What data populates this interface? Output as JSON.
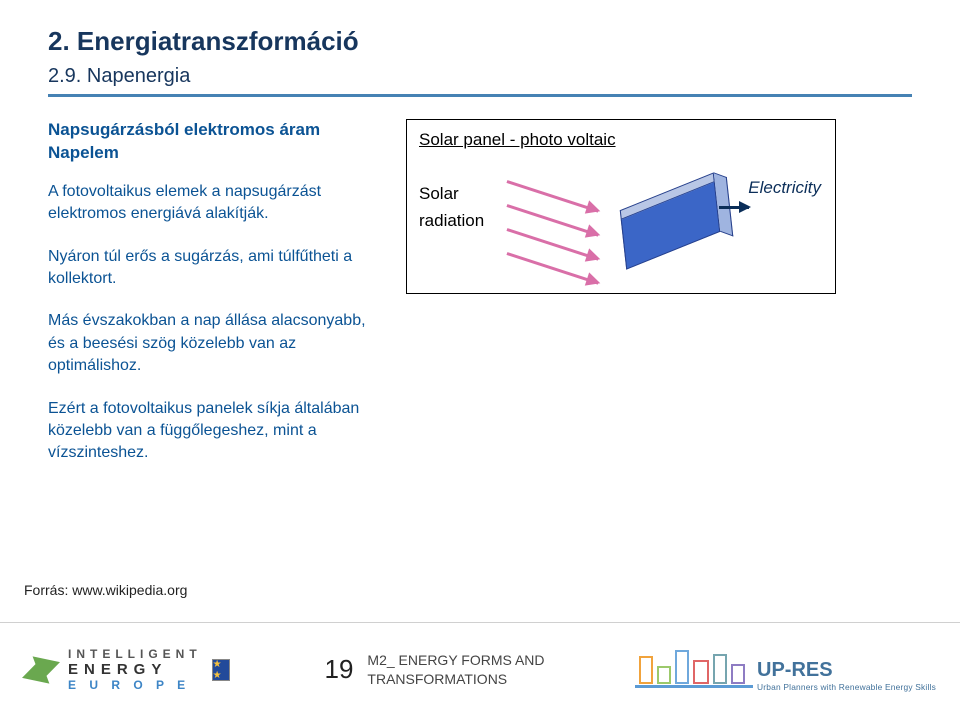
{
  "heading": "2. Energiatranszformáció",
  "subheading": "2.9. Napenergia",
  "left": {
    "subhead": "Napsugárzásból elektromos áram Napelem",
    "p1": "A fotovoltaikus elemek a napsugárzást elektromos energiává alakítják.",
    "p2": "Nyáron túl erős a sugárzás, ami túlfűtheti a kollektort.",
    "p3": "Más évszakokban  a nap állása alacsonyabb, és a beesési szög közelebb van az optimálishoz.",
    "p4": "Ezért a fotovoltaikus panelek síkja általában közelebb van a függőlegeshez, mint a vízszinteshez."
  },
  "diagram": {
    "title": "Solar panel - photo voltaic",
    "input1": "Solar",
    "input2": "radiation",
    "output": "Electricity",
    "ray_color": "#d96fa8",
    "panel_face": "#3b66c7",
    "panel_top": "#b9c7e6",
    "panel_side": "#9fb4e0",
    "panel_border": "#27408b"
  },
  "source": "Forrás: www.wikipedia.org",
  "footer": {
    "ie_line1": "INTELLIGENT",
    "ie_line2": "ENERGY",
    "ie_line3": "E U R O P E",
    "eu_stars": "★ ★",
    "page_num": "19",
    "module_l1": "M2_ ENERGY FORMS AND",
    "module_l2": "TRANSFORMATIONS",
    "up_name": "UP-RES",
    "up_tag": "Urban Planners with Renewable Energy Skills"
  }
}
